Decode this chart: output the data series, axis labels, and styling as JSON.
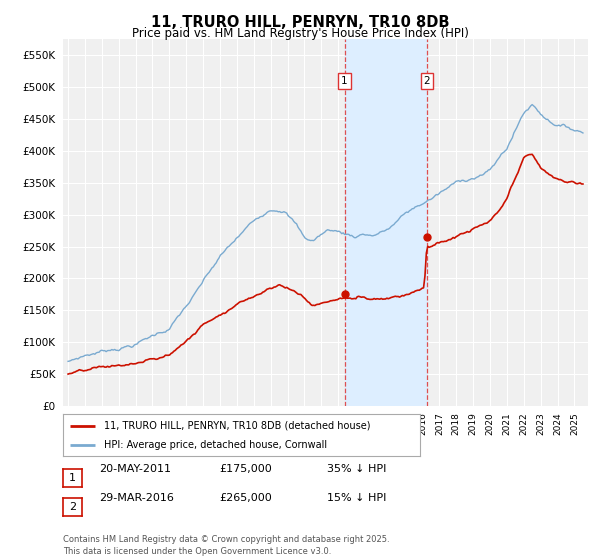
{
  "title": "11, TRURO HILL, PENRYN, TR10 8DB",
  "subtitle": "Price paid vs. HM Land Registry's House Price Index (HPI)",
  "ylim": [
    0,
    575000
  ],
  "yticks": [
    0,
    50000,
    100000,
    150000,
    200000,
    250000,
    300000,
    350000,
    400000,
    450000,
    500000,
    550000
  ],
  "xlim_start": 1994.7,
  "xlim_end": 2025.8,
  "hpi_color": "#7aaad0",
  "price_color": "#cc1100",
  "vline_color": "#dd3333",
  "highlight_color": "#ddeeff",
  "transaction1_x": 2011.38,
  "transaction1_y": 175000,
  "transaction1_label": "1",
  "transaction2_x": 2016.25,
  "transaction2_y": 265000,
  "transaction2_label": "2",
  "legend1": "11, TRURO HILL, PENRYN, TR10 8DB (detached house)",
  "legend2": "HPI: Average price, detached house, Cornwall",
  "table_row1": [
    "1",
    "20-MAY-2011",
    "£175,000",
    "35% ↓ HPI"
  ],
  "table_row2": [
    "2",
    "29-MAR-2016",
    "£265,000",
    "15% ↓ HPI"
  ],
  "footer": "Contains HM Land Registry data © Crown copyright and database right 2025.\nThis data is licensed under the Open Government Licence v3.0.",
  "chart_bg": "#f0f0f0",
  "grid_color": "#ffffff"
}
